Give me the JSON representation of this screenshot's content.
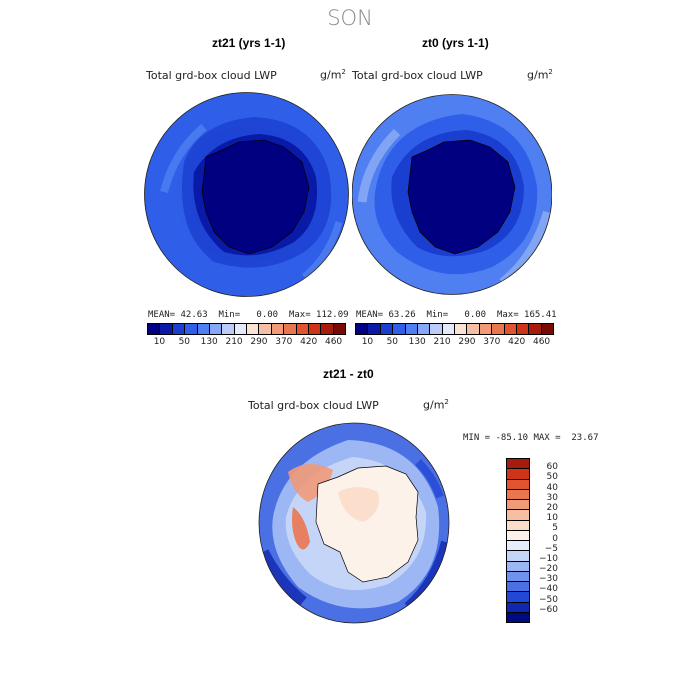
{
  "season": "SON",
  "panel_left": {
    "title": "zt21 (yrs 1-1)",
    "variable": "Total grd-box cloud LWP",
    "units_base": "g/m",
    "units_exp": "2",
    "mean_label": "MEAN=",
    "mean": "42.63",
    "min_label": "Min=",
    "min": "0.00",
    "max_label": "Max=",
    "max": "112.09"
  },
  "panel_right": {
    "title": "zt0 (yrs 1-1)",
    "variable": "Total grd-box cloud LWP",
    "units_base": "g/m",
    "units_exp": "2",
    "mean_label": "MEAN=",
    "mean": "63.26",
    "min_label": "Min=",
    "min": "0.00",
    "max_label": "Max=",
    "max": "165.41"
  },
  "colorbar_ticks": [
    "10",
    "50",
    "130",
    "210",
    "290",
    "370",
    "420",
    "460"
  ],
  "colorbar_colors": [
    "#000080",
    "#0a1aa8",
    "#1a3fd0",
    "#2f5fe8",
    "#4f7ff0",
    "#86a8f5",
    "#b9cdf8",
    "#e3ebfb",
    "#fbe3d3",
    "#f6bfa3",
    "#f09a78",
    "#ea7650",
    "#e2532f",
    "#cf3318",
    "#a61c0c",
    "#7a0b04"
  ],
  "panel_diff": {
    "title": "zt21 - zt0",
    "variable": "Total grd-box cloud LWP",
    "units_base": "g/m",
    "units_exp": "2",
    "min_label": "MIN =",
    "min": "-85.10",
    "max_label": "MAX =",
    "max": "23.67"
  },
  "diff_levels": [
    "60",
    "50",
    "40",
    "30",
    "20",
    "10",
    "5",
    "0",
    "−5",
    "−10",
    "−20",
    "−30",
    "−40",
    "−50",
    "−60"
  ],
  "diff_colors": [
    "#a61c0c",
    "#cf3318",
    "#e2532f",
    "#ea7650",
    "#f09a78",
    "#f6bfa3",
    "#fbdcc8",
    "#fdf2ea",
    "#e7eefb",
    "#c5d5f8",
    "#9db7f4",
    "#6f92ec",
    "#4a70e4",
    "#2347d6",
    "#1028b0",
    "#000a80"
  ]
}
